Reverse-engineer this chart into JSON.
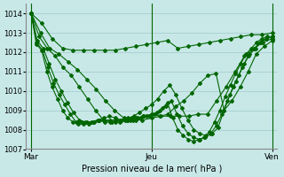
{
  "background_color": "#c8e8e8",
  "grid_color": "#a0c8c8",
  "line_color": "#006600",
  "title": "Pression niveau de la mer( hPa )",
  "xlabel": "Pression niveau de la mer( hPa )",
  "xtick_labels": [
    "Mar",
    "Jeu",
    "Ven"
  ],
  "xtick_positions": [
    0,
    48,
    96
  ],
  "ylim": [
    1007,
    1014.5
  ],
  "yticks": [
    1007,
    1008,
    1009,
    1010,
    1011,
    1012,
    1013,
    1014
  ],
  "lines": [
    [
      1014.0,
      1013.5,
      1012.7,
      1012.2,
      1012.1,
      1012.1,
      1012.1,
      1012.1,
      1012.1,
      1012.2,
      1012.3,
      1012.4,
      1012.5,
      1012.6,
      1012.2,
      1012.3,
      1012.4,
      1012.5,
      1012.6,
      1012.7,
      1012.8,
      1012.9,
      1012.9,
      1013.0
    ],
    [
      1014.0,
      1013.0,
      1012.2,
      1011.9,
      1011.5,
      1011.1,
      1010.6,
      1010.1,
      1009.5,
      1009.0,
      1008.6,
      1008.5,
      1008.5,
      1008.6,
      1008.7,
      1008.7,
      1008.7,
      1008.7,
      1008.8,
      1008.8,
      1009.5,
      1010.2,
      1011.0,
      1011.8,
      1012.2,
      1012.5,
      1012.7
    ],
    [
      1014.0,
      1012.8,
      1012.2,
      1011.8,
      1011.2,
      1010.8,
      1010.2,
      1009.6,
      1009.0,
      1008.5,
      1008.4,
      1008.4,
      1008.5,
      1008.6,
      1008.7,
      1008.8,
      1008.7,
      1008.8,
      1009.2,
      1009.5,
      1009.9,
      1010.4,
      1010.8,
      1010.9,
      1009.0,
      1009.5,
      1010.2,
      1011.0,
      1011.9,
      1012.3,
      1012.6
    ],
    [
      1014.0,
      1012.6,
      1012.2,
      1011.4,
      1010.6,
      1010.0,
      1009.4,
      1008.9,
      1008.5,
      1008.4,
      1008.4,
      1008.5,
      1008.6,
      1008.7,
      1008.6,
      1008.5,
      1008.6,
      1008.7,
      1008.9,
      1009.1,
      1009.3,
      1009.6,
      1010.0,
      1010.3,
      1009.8,
      1009.1,
      1008.5,
      1008.0,
      1007.8,
      1007.7,
      1007.8,
      1008.1,
      1009.0,
      1009.8,
      1010.5,
      1011.2,
      1011.8,
      1012.2,
      1012.5,
      1012.7,
      1012.8
    ],
    [
      1014.0,
      1012.5,
      1012.1,
      1011.2,
      1010.4,
      1009.8,
      1009.3,
      1008.8,
      1008.4,
      1008.4,
      1008.4,
      1008.4,
      1008.5,
      1008.5,
      1008.5,
      1008.5,
      1008.5,
      1008.5,
      1008.6,
      1008.6,
      1008.7,
      1008.7,
      1008.8,
      1009.0,
      1009.2,
      1009.5,
      1008.8,
      1008.2,
      1007.8,
      1007.6,
      1007.5,
      1007.6,
      1007.8,
      1008.2,
      1008.8,
      1009.5,
      1010.2,
      1010.8,
      1011.4,
      1011.9,
      1012.2,
      1012.5,
      1012.7,
      1012.8
    ],
    [
      1014.0,
      1012.4,
      1012.1,
      1011.0,
      1010.2,
      1009.6,
      1009.0,
      1008.6,
      1008.4,
      1008.3,
      1008.3,
      1008.3,
      1008.4,
      1008.5,
      1008.4,
      1008.4,
      1008.4,
      1008.5,
      1008.5,
      1008.5,
      1008.5,
      1008.6,
      1008.7,
      1008.8,
      1008.9,
      1009.1,
      1009.4,
      1008.6,
      1008.0,
      1007.7,
      1007.5,
      1007.4,
      1007.5,
      1007.6,
      1007.9,
      1008.4,
      1009.0,
      1009.7,
      1010.3,
      1010.9,
      1011.4,
      1011.9,
      1012.2,
      1012.5,
      1012.7,
      1012.8,
      1012.7
    ]
  ]
}
